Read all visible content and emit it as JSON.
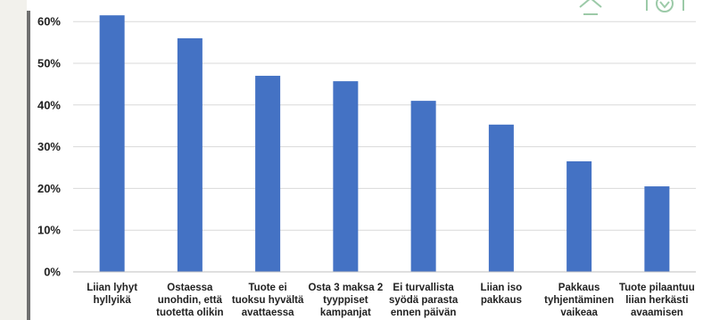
{
  "chart_data": {
    "type": "bar",
    "categories": [
      [
        "Liian lyhyt",
        "hyllyikä"
      ],
      [
        "Ostaessa",
        "unohdin, että",
        "tuotetta olikin"
      ],
      [
        "Tuote ei",
        "tuoksu hyvältä",
        "avattaessa"
      ],
      [
        "Osta 3 maksa 2",
        "tyyppiset",
        "kampanjat"
      ],
      [
        "Ei turvallista",
        "syödä parasta",
        "ennen päivän"
      ],
      [
        "Liian iso",
        "pakkaus"
      ],
      [
        "Pakkaus",
        "tyhjentäminen",
        "vaikeaa"
      ],
      [
        "Tuote pilaantuu",
        "liian herkästi",
        "avaamisen"
      ]
    ],
    "values": [
      61.5,
      56,
      47,
      45.7,
      41,
      35.3,
      26.5,
      20.5
    ],
    "y_ticks": [
      "0%",
      "10%",
      "20%",
      "30%",
      "40%",
      "50%",
      "60%"
    ],
    "ylim": [
      0,
      65
    ],
    "grid": true,
    "bar_color": "#4472c4",
    "grid_color": "#d9d9d9"
  }
}
